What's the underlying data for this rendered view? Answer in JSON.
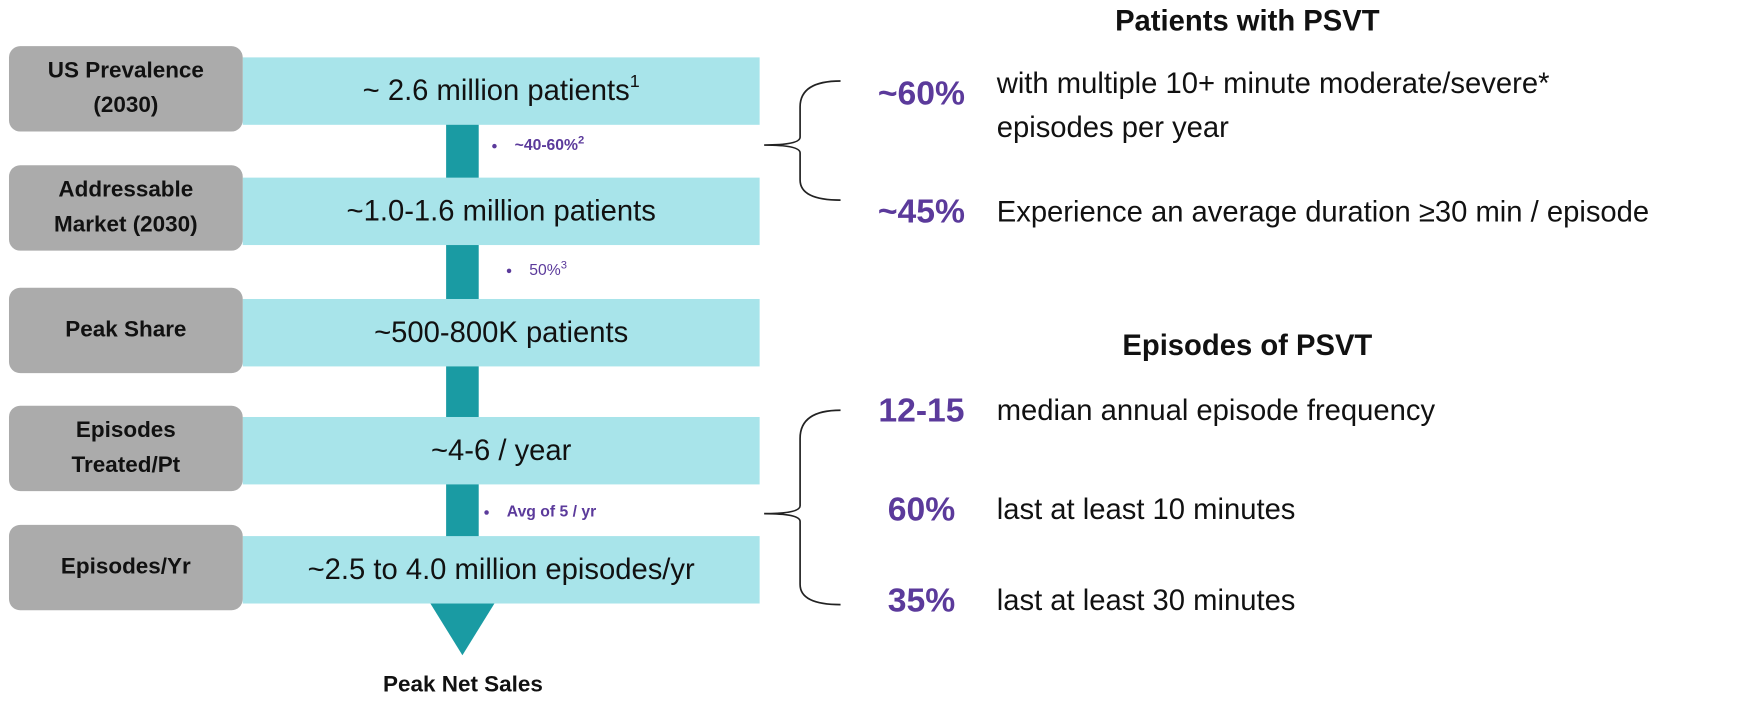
{
  "funnel": {
    "rows": [
      {
        "label": [
          "US Prevalence",
          "(2030)"
        ],
        "value": "~ 2.6 million patients",
        "sup": "1"
      },
      {
        "label": [
          "Addressable",
          "Market (2030)"
        ],
        "value": "~1.0-1.6 million patients"
      },
      {
        "label": [
          "Peak Share"
        ],
        "value": "~500-800K patients"
      },
      {
        "label": [
          "Episodes",
          "Treated/Pt"
        ],
        "value": "~4-6 / year"
      },
      {
        "label": [
          "Episodes/Yr"
        ],
        "value": "~2.5 to 4.0 million episodes/yr"
      }
    ],
    "notes": [
      {
        "text": "~40-60%",
        "sup": "2"
      },
      {
        "text": "50%",
        "sup": "3"
      },
      {
        "text": "Avg of 5 / yr"
      }
    ],
    "result": "Peak Net Sales"
  },
  "patients": {
    "title": "Patients with PSVT",
    "items": [
      {
        "stat": "~60%",
        "text": [
          "with multiple 10+ minute moderate/severe*",
          "episodes per year"
        ]
      },
      {
        "stat": "~45%",
        "text": [
          "Experience an average duration ≥30 min / episode"
        ]
      }
    ]
  },
  "episodes": {
    "title": "Episodes of PSVT",
    "items": [
      {
        "stat": "12-15",
        "text": [
          "median annual episode frequency"
        ]
      },
      {
        "stat": "60%",
        "text": [
          "last at least 10 minutes"
        ]
      },
      {
        "stat": "35%",
        "text": [
          "last at least 30 minutes"
        ]
      }
    ]
  }
}
